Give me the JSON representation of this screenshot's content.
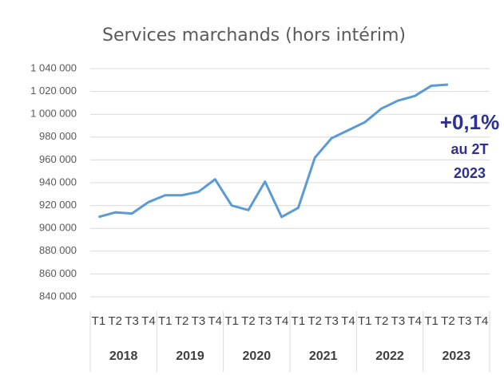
{
  "chart_data": {
    "type": "line",
    "title": "Services marchands (hors intérim)",
    "categories": [
      "T1",
      "T2",
      "T3",
      "T4",
      "T1",
      "T2",
      "T3",
      "T4",
      "T1",
      "T2",
      "T3",
      "T4",
      "T1",
      "T2",
      "T3",
      "T4",
      "T1",
      "T2",
      "T3",
      "T4",
      "T1",
      "T2",
      "T3",
      "T4"
    ],
    "category_groups": [
      "2018",
      "2019",
      "2020",
      "2021",
      "2022",
      "2023"
    ],
    "series": [
      {
        "color": "#5b9bd5",
        "values": [
          910000,
          914000,
          913000,
          923000,
          929000,
          929000,
          932000,
          943000,
          920000,
          916000,
          941000,
          910000,
          918000,
          962000,
          979000,
          986000,
          993000,
          1005000,
          1012000,
          1016000,
          1025000,
          1026000,
          null,
          null
        ]
      }
    ],
    "ylim": [
      840000,
      1040000
    ],
    "yticks": [
      {
        "value": 840000,
        "label": "840 000"
      },
      {
        "value": 860000,
        "label": "860 000"
      },
      {
        "value": 880000,
        "label": "880 000"
      },
      {
        "value": 900000,
        "label": "900 000"
      },
      {
        "value": 920000,
        "label": "920 000"
      },
      {
        "value": 940000,
        "label": "940 000"
      },
      {
        "value": 960000,
        "label": "960 000"
      },
      {
        "value": 980000,
        "label": "980 000"
      },
      {
        "value": 1000000,
        "label": "1 000 000"
      },
      {
        "value": 1020000,
        "label": "1 020 000"
      },
      {
        "value": 1040000,
        "label": "1 040 000"
      }
    ],
    "grid": true,
    "annotation": [
      "+0,1%",
      "au 2T",
      "2023"
    ]
  }
}
